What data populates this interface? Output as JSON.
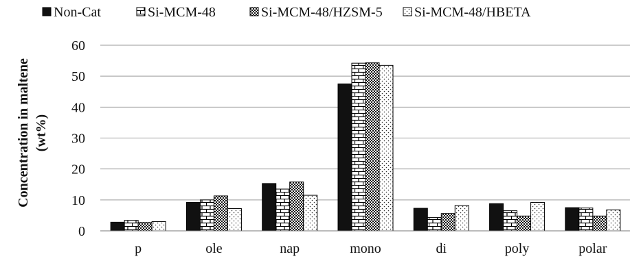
{
  "chart_data": {
    "type": "bar",
    "title": "",
    "xlabel": "",
    "ylabel_lines": [
      "Concentration in maltene",
      "(wt%)"
    ],
    "ylim": [
      0,
      60
    ],
    "yticks": [
      0,
      10,
      20,
      30,
      40,
      50,
      60
    ],
    "grid": true,
    "legend_position": "top",
    "categories": [
      "p",
      "ole",
      "nap",
      "mono",
      "di",
      "poly",
      "polar"
    ],
    "series": [
      {
        "name": "Non-Cat",
        "pattern": "solid",
        "values": [
          2.8,
          9.2,
          15.3,
          47.5,
          7.3,
          8.8,
          7.5
        ]
      },
      {
        "name": "Si-MCM-48",
        "pattern": "brick",
        "values": [
          3.4,
          10.0,
          13.5,
          54.2,
          4.3,
          6.5,
          7.4
        ]
      },
      {
        "name": "Si-MCM-48/HZSM-5",
        "pattern": "checker",
        "values": [
          2.7,
          11.3,
          15.8,
          54.3,
          5.6,
          4.8,
          4.8
        ]
      },
      {
        "name": "Si-MCM-48/HBETA",
        "pattern": "dots",
        "values": [
          3.0,
          7.2,
          11.5,
          53.5,
          8.2,
          9.2,
          6.8
        ]
      }
    ]
  }
}
